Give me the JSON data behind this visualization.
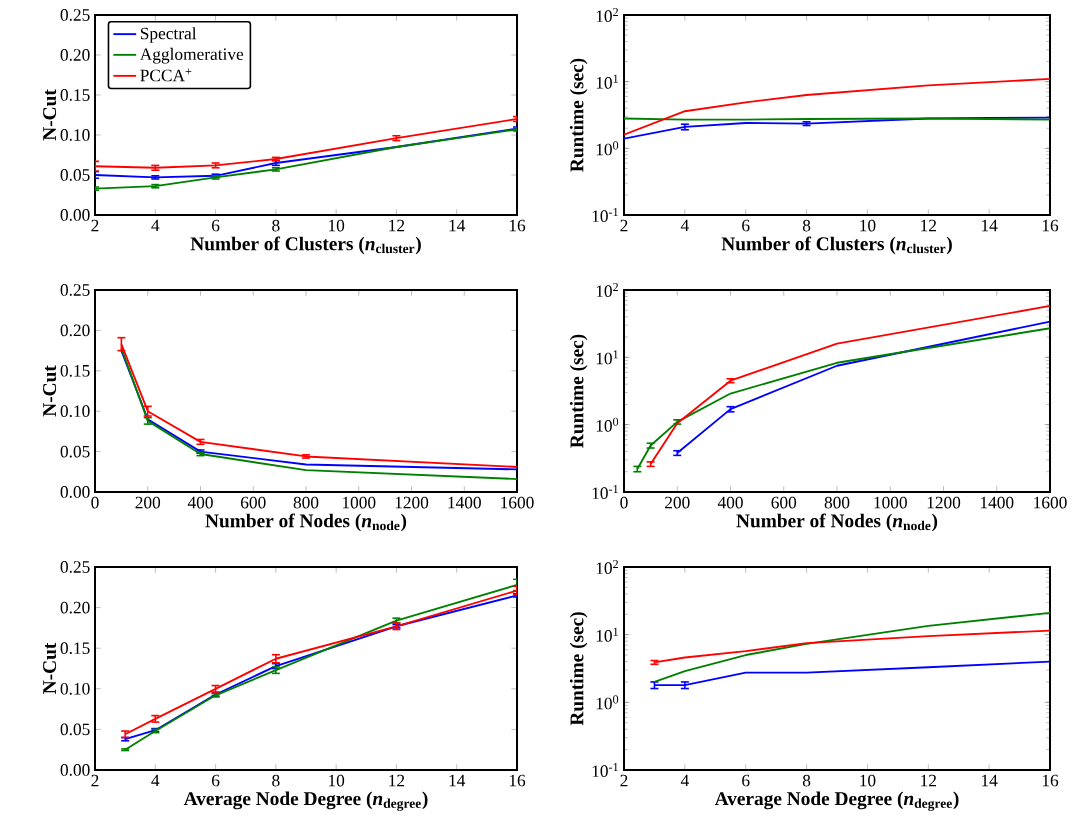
{
  "chart_data": [
    {
      "type": "line",
      "xlabel": "Number of Clusters (*n*$_{cluster}$)",
      "ylabel": "N-Cut",
      "x": [
        2,
        4,
        6,
        8,
        12,
        16
      ],
      "xlim": [
        2,
        16
      ],
      "xticks": [
        2,
        4,
        6,
        8,
        10,
        12,
        14,
        16
      ],
      "ylim": [
        0,
        0.25
      ],
      "yticks": [
        {
          "value": 0,
          "label": "0.00"
        },
        {
          "value": 0.05,
          "label": "0.05"
        },
        {
          "value": 0.1,
          "label": "0.10"
        },
        {
          "value": 0.15,
          "label": "0.15"
        },
        {
          "value": 0.2,
          "label": "0.20"
        },
        {
          "value": 0.25,
          "label": "0.25"
        }
      ],
      "legend": "top left",
      "series": [
        {
          "name": "Spectral",
          "color": "#0000ff",
          "values": [
            0.05,
            0.047,
            0.049,
            0.065,
            0.085,
            0.108
          ],
          "errors": [
            0.004,
            0.002,
            0.002,
            0.003,
            null,
            0.002
          ]
        },
        {
          "name": "Agglomerative",
          "color": "#008000",
          "values": [
            0.033,
            0.036,
            0.047,
            0.057,
            0.085,
            0.107
          ],
          "errors": [
            0.002,
            0.002,
            0.002,
            0.002,
            null,
            0.002
          ]
        },
        {
          "name": "PCCA$^{+}$",
          "color": "#ff0000",
          "values": [
            0.061,
            0.059,
            0.062,
            0.07,
            0.096,
            0.12
          ],
          "errors": [
            0.006,
            0.003,
            0.003,
            0.002,
            0.003,
            0.003
          ]
        }
      ]
    },
    {
      "type": "line",
      "xlabel": "Number of Clusters (*n*$_{cluster}$)",
      "ylabel": "Runtime (sec)",
      "log": true,
      "x": [
        2,
        4,
        6,
        8,
        12,
        16
      ],
      "xlim": [
        2,
        16
      ],
      "xticks": [
        2,
        4,
        6,
        8,
        10,
        12,
        14,
        16
      ],
      "ylim": [
        0.1,
        100
      ],
      "yticks": [
        {
          "value": 0.1,
          "label": "10$^{-1}$"
        },
        {
          "value": 1,
          "label": "10$^{0}$"
        },
        {
          "value": 10,
          "label": "10$^{1}$"
        },
        {
          "value": 100,
          "label": "10$^{2}$"
        }
      ],
      "series": [
        {
          "color": "#0000ff",
          "values": [
            1.4,
            2.1,
            2.4,
            2.35,
            2.8,
            2.9
          ],
          "errors": [
            null,
            0.2,
            null,
            0.15,
            null,
            null
          ]
        },
        {
          "color": "#008000",
          "values": [
            2.8,
            2.7,
            2.7,
            2.75,
            2.8,
            2.7
          ]
        },
        {
          "color": "#ff0000",
          "values": [
            1.6,
            3.6,
            4.9,
            6.3,
            8.8,
            11
          ]
        }
      ]
    },
    {
      "type": "line",
      "xlabel": "Number of Nodes (*n*$_{node}$)",
      "ylabel": "N-Cut",
      "x": [
        100,
        200,
        400,
        800,
        1600
      ],
      "xlim": [
        0,
        1600
      ],
      "xticks": [
        0,
        200,
        400,
        600,
        800,
        1000,
        1200,
        1400,
        1600
      ],
      "ylim": [
        0,
        0.25
      ],
      "yticks": [
        {
          "value": 0,
          "label": "0.00"
        },
        {
          "value": 0.05,
          "label": "0.05"
        },
        {
          "value": 0.1,
          "label": "0.10"
        },
        {
          "value": 0.15,
          "label": "0.15"
        },
        {
          "value": 0.2,
          "label": "0.20"
        },
        {
          "value": 0.25,
          "label": "0.25"
        }
      ],
      "series": [
        {
          "color": "#0000ff",
          "values": [
            0.175,
            0.09,
            0.05,
            0.034,
            0.028
          ],
          "errors": [
            null,
            null,
            0.002,
            null,
            null
          ]
        },
        {
          "color": "#008000",
          "values": [
            0.178,
            0.088,
            0.047,
            0.027,
            0.016
          ],
          "errors": [
            null,
            0.004,
            0.002,
            null,
            null
          ]
        },
        {
          "color": "#ff0000",
          "values": [
            0.183,
            0.1,
            0.062,
            0.044,
            0.031
          ],
          "errors": [
            0.008,
            0.006,
            0.003,
            0.002,
            null
          ]
        }
      ]
    },
    {
      "type": "line",
      "xlabel": "Number of Nodes (*n*$_{node}$)",
      "ylabel": "Runtime (sec)",
      "log": true,
      "x": [
        50,
        100,
        200,
        400,
        800,
        1600
      ],
      "xlim": [
        0,
        1600
      ],
      "xticks": [
        0,
        200,
        400,
        600,
        800,
        1000,
        1200,
        1400,
        1600
      ],
      "ylim": [
        0.1,
        100
      ],
      "yticks": [
        {
          "value": 0.1,
          "label": "10$^{-1}$"
        },
        {
          "value": 1,
          "label": "10$^{0}$"
        },
        {
          "value": 10,
          "label": "10$^{1}$"
        },
        {
          "value": 100,
          "label": "10$^{2}$"
        }
      ],
      "series": [
        {
          "color": "#0000ff",
          "values": [
            null,
            null,
            0.38,
            1.7,
            7.5,
            34
          ],
          "errors": [
            null,
            null,
            0.03,
            0.15,
            null,
            null
          ]
        },
        {
          "color": "#008000",
          "values": [
            0.22,
            0.49,
            1.1,
            2.9,
            8.3,
            27
          ],
          "errors": [
            0.02,
            0.04,
            0.08,
            null,
            null,
            null
          ]
        },
        {
          "color": "#ff0000",
          "values": [
            null,
            0.26,
            1.05,
            4.5,
            16,
            58
          ],
          "errors": [
            null,
            0.02,
            null,
            0.3,
            null,
            null
          ]
        }
      ]
    },
    {
      "type": "line",
      "xlabel": "Average Node Degree (*n*$_{degree}$)",
      "ylabel": "N-Cut",
      "x": [
        3,
        4,
        6,
        8,
        12,
        16
      ],
      "xlim": [
        2,
        16
      ],
      "xticks": [
        2,
        4,
        6,
        8,
        10,
        12,
        14,
        16
      ],
      "ylim": [
        0,
        0.25
      ],
      "yticks": [
        {
          "value": 0,
          "label": "0.00"
        },
        {
          "value": 0.05,
          "label": "0.05"
        },
        {
          "value": 0.1,
          "label": "0.10"
        },
        {
          "value": 0.15,
          "label": "0.15"
        },
        {
          "value": 0.2,
          "label": "0.20"
        },
        {
          "value": 0.25,
          "label": "0.25"
        }
      ],
      "series": [
        {
          "color": "#0000ff",
          "values": [
            0.038,
            0.049,
            0.093,
            0.128,
            0.177,
            0.215
          ],
          "errors": [
            0.002,
            0.002,
            0.002,
            0.003,
            0.002,
            0.002
          ]
        },
        {
          "color": "#008000",
          "values": [
            0.025,
            0.048,
            0.092,
            0.123,
            0.184,
            0.228
          ],
          "errors": [
            0.001,
            0.002,
            0.002,
            0.004,
            0.003,
            0.007
          ]
        },
        {
          "color": "#ff0000",
          "values": [
            0.044,
            0.063,
            0.1,
            0.137,
            0.177,
            0.221
          ],
          "errors": [
            0.004,
            0.004,
            0.004,
            0.005,
            0.004,
            0.005
          ]
        }
      ]
    },
    {
      "type": "line",
      "xlabel": "Average Node Degree (*n*$_{degree}$)",
      "ylabel": "Runtime (sec)",
      "log": true,
      "x": [
        3,
        4,
        6,
        8,
        12,
        16
      ],
      "xlim": [
        2,
        16
      ],
      "xticks": [
        2,
        4,
        6,
        8,
        10,
        12,
        14,
        16
      ],
      "ylim": [
        0.1,
        100
      ],
      "yticks": [
        {
          "value": 0.1,
          "label": "10$^{-1}$"
        },
        {
          "value": 1,
          "label": "10$^{0}$"
        },
        {
          "value": 10,
          "label": "10$^{1}$"
        },
        {
          "value": 100,
          "label": "10$^{2}$"
        }
      ],
      "series": [
        {
          "color": "#0000ff",
          "values": [
            1.8,
            1.8,
            2.75,
            2.75,
            3.3,
            4.0
          ],
          "errors": [
            0.2,
            0.2,
            null,
            null,
            null,
            null
          ]
        },
        {
          "color": "#008000",
          "values": [
            2.0,
            2.9,
            5.0,
            7.3,
            13.5,
            21
          ]
        },
        {
          "color": "#ff0000",
          "values": [
            3.9,
            4.6,
            5.7,
            7.5,
            9.5,
            11.5
          ],
          "errors": [
            0.25,
            null,
            null,
            null,
            null,
            null
          ]
        }
      ]
    }
  ]
}
